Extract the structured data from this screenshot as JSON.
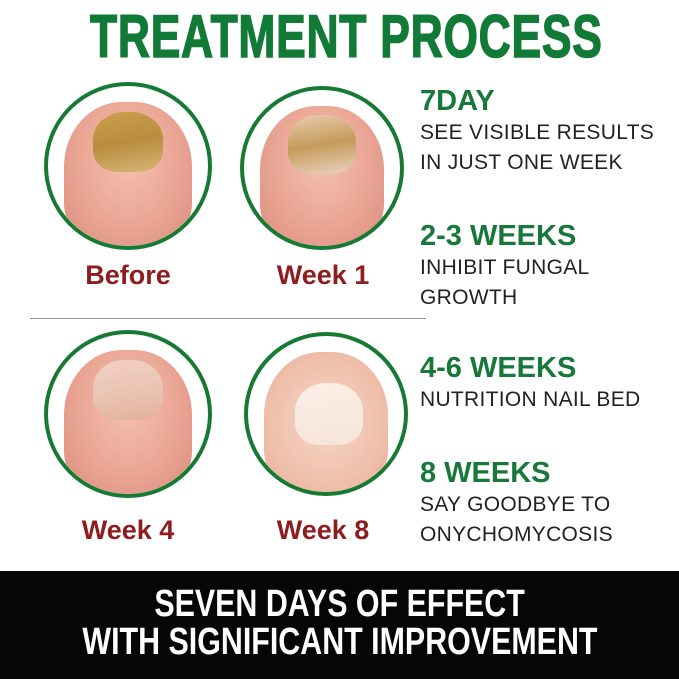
{
  "title": "TREATMENT PROCESS",
  "photos": [
    {
      "label": "Before"
    },
    {
      "label": "Week 1"
    },
    {
      "label": "Week 4"
    },
    {
      "label": "Week 8"
    }
  ],
  "steps": [
    {
      "heading": "7DAY",
      "lines": [
        "SEE VISIBLE RESULTS",
        "IN JUST ONE WEEK"
      ]
    },
    {
      "heading": "2-3 WEEKS",
      "lines": [
        "INHIBIT FUNGAL",
        "GROWTH"
      ]
    },
    {
      "heading": "4-6 WEEKS",
      "lines": [
        "NUTRITION NAIL BED"
      ]
    },
    {
      "heading": "8 WEEKS",
      "lines": [
        "SAY GOODBYE TO",
        "ONYCHOMYCOSIS"
      ]
    }
  ],
  "banner": {
    "line1": "SEVEN DAYS OF EFFECT",
    "line2": "WITH SIGNIFICANT IMPROVEMENT"
  },
  "colors": {
    "green": "#117a36",
    "label_red": "#8e1d1f",
    "banner_bg": "#060606"
  }
}
